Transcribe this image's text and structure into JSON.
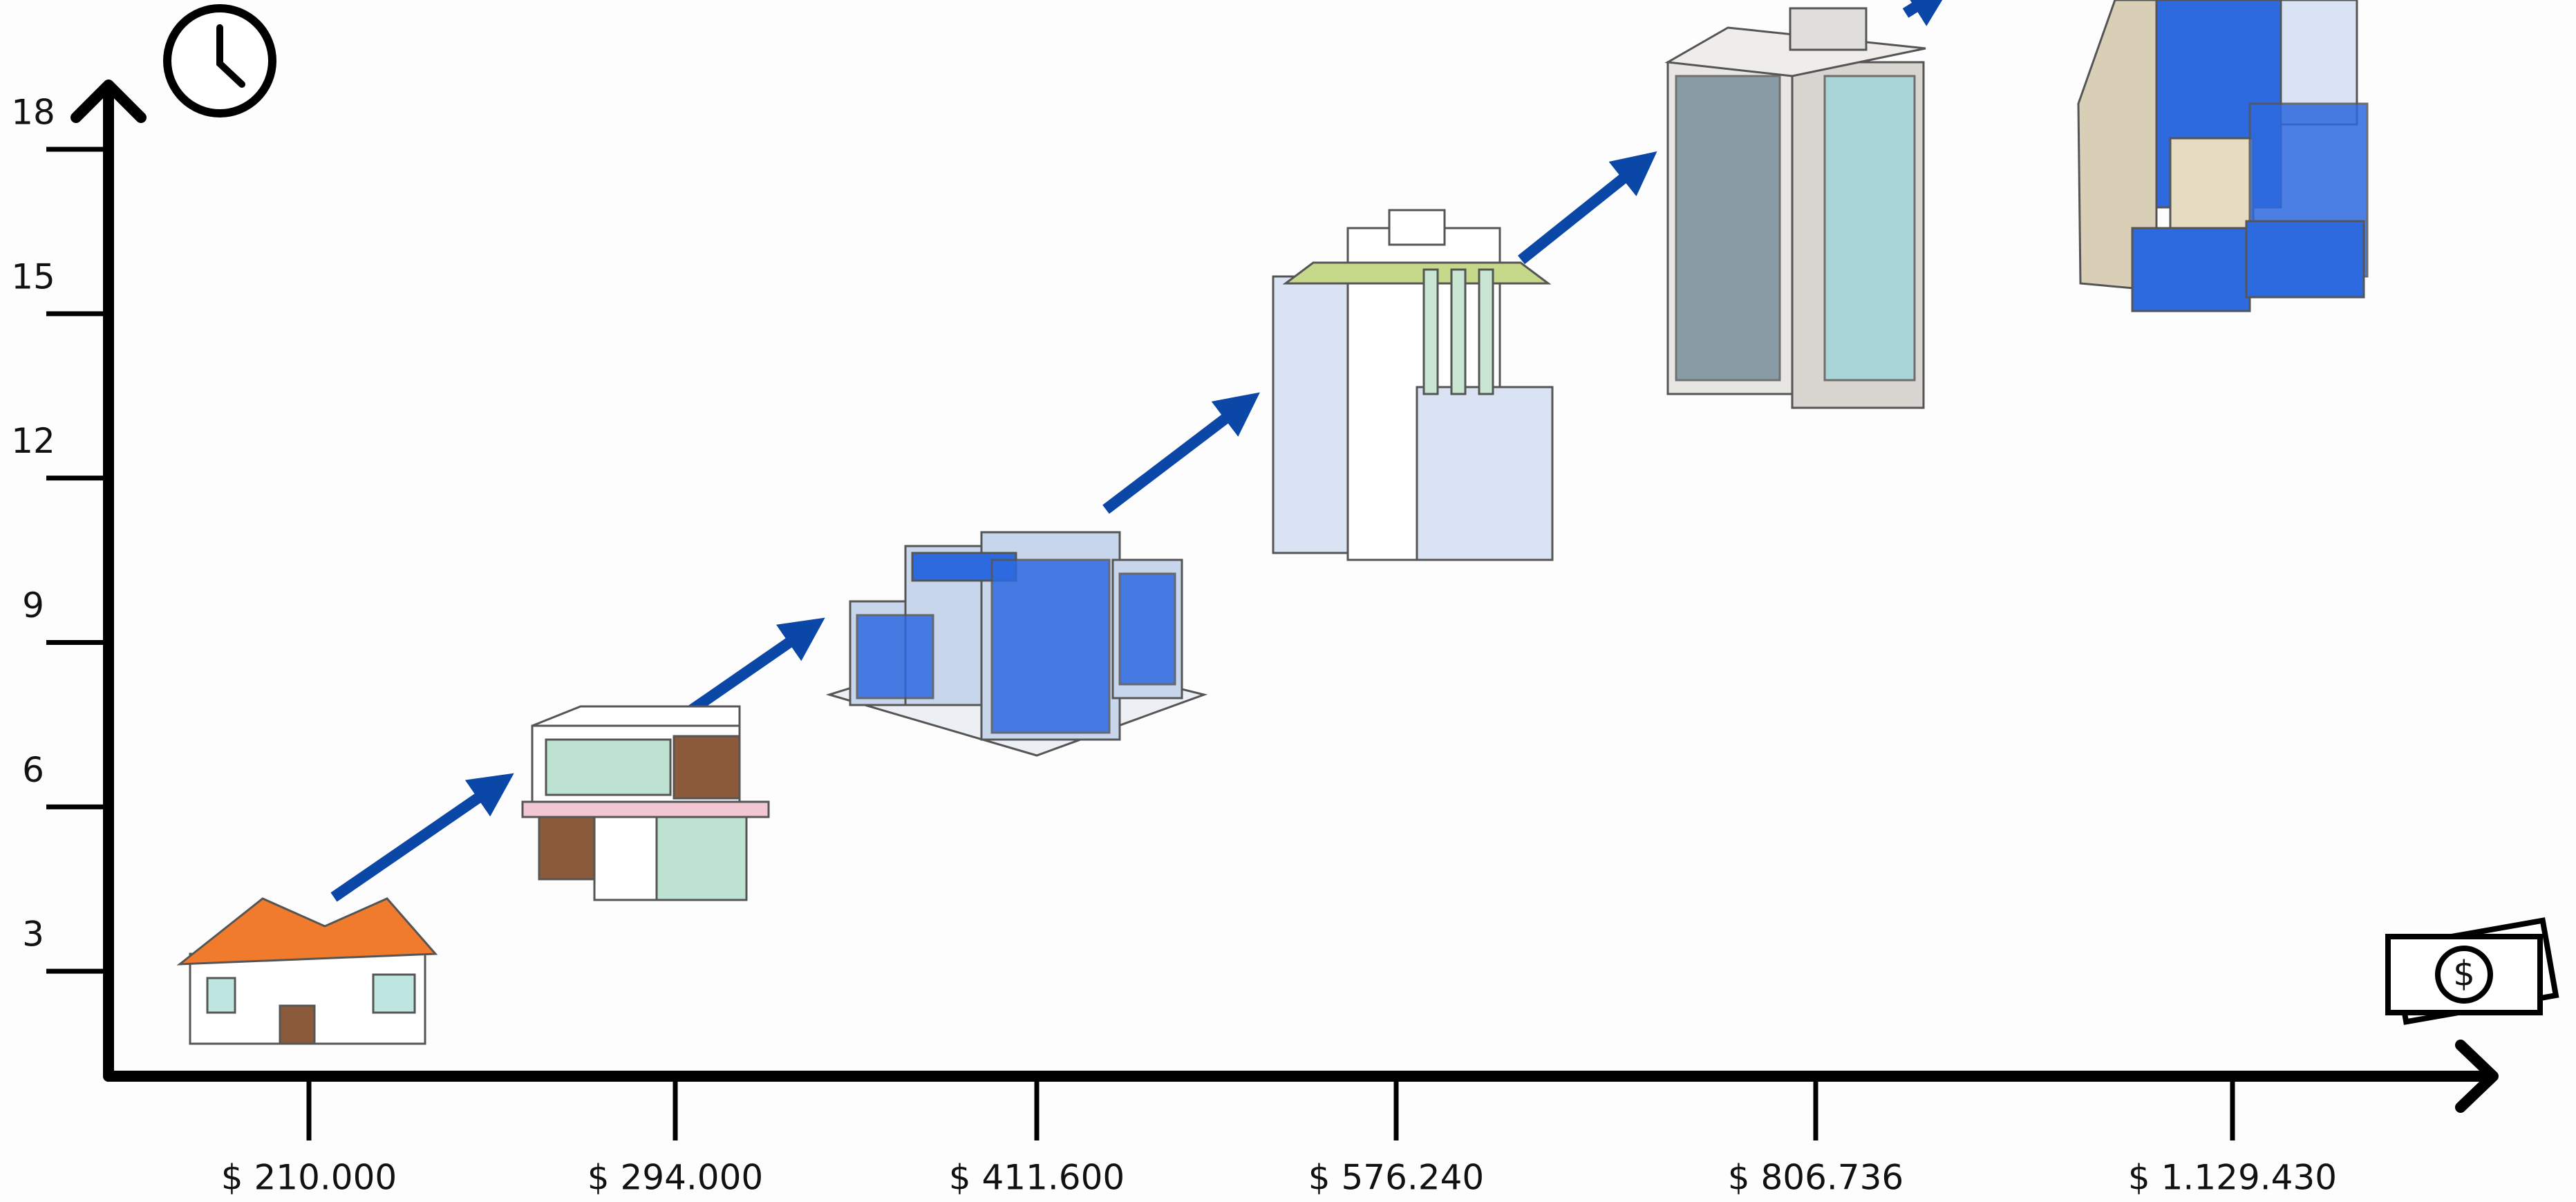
{
  "chart_data": {
    "type": "pictograph",
    "categories": [
      "$ 210.000",
      "$ 294.000",
      "$ 411.600",
      "$ 576.240",
      "$ 806.736",
      "$ 1.129.430"
    ],
    "ylim": [
      0,
      18
    ],
    "yticks": [
      3,
      6,
      9,
      12,
      15,
      18
    ]
  }
}
